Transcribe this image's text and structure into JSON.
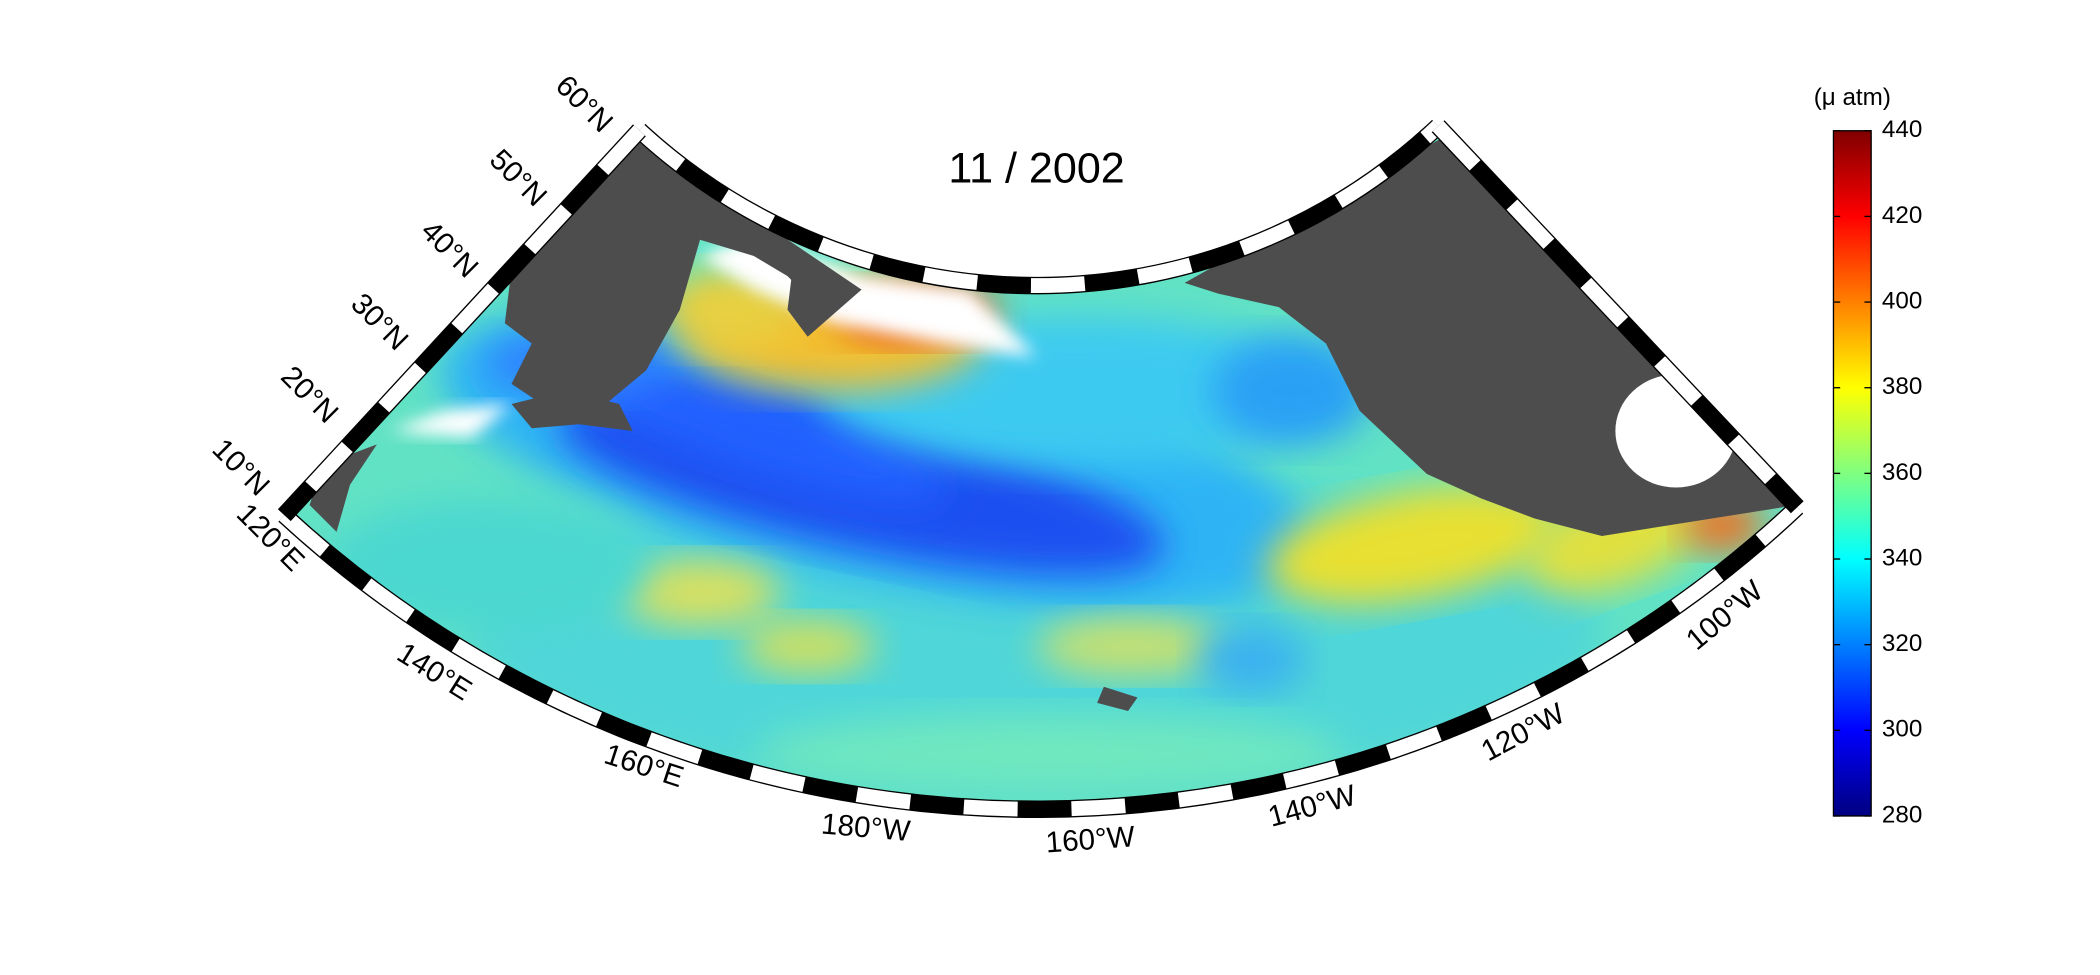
{
  "title": "11 / 2002",
  "colorbar": {
    "unit": "(μ atm)",
    "lim": [
      280,
      440
    ],
    "ticks": [
      280,
      300,
      320,
      340,
      360,
      380,
      400,
      420,
      440
    ]
  },
  "latitude_labels": [
    "10°N",
    "20°N",
    "30°N",
    "40°N",
    "50°N",
    "60°N"
  ],
  "longitude_labels": [
    "120°E",
    "140°E",
    "160°E",
    "180°W",
    "160°W",
    "140°W",
    "120°W",
    "100°W"
  ]
}
